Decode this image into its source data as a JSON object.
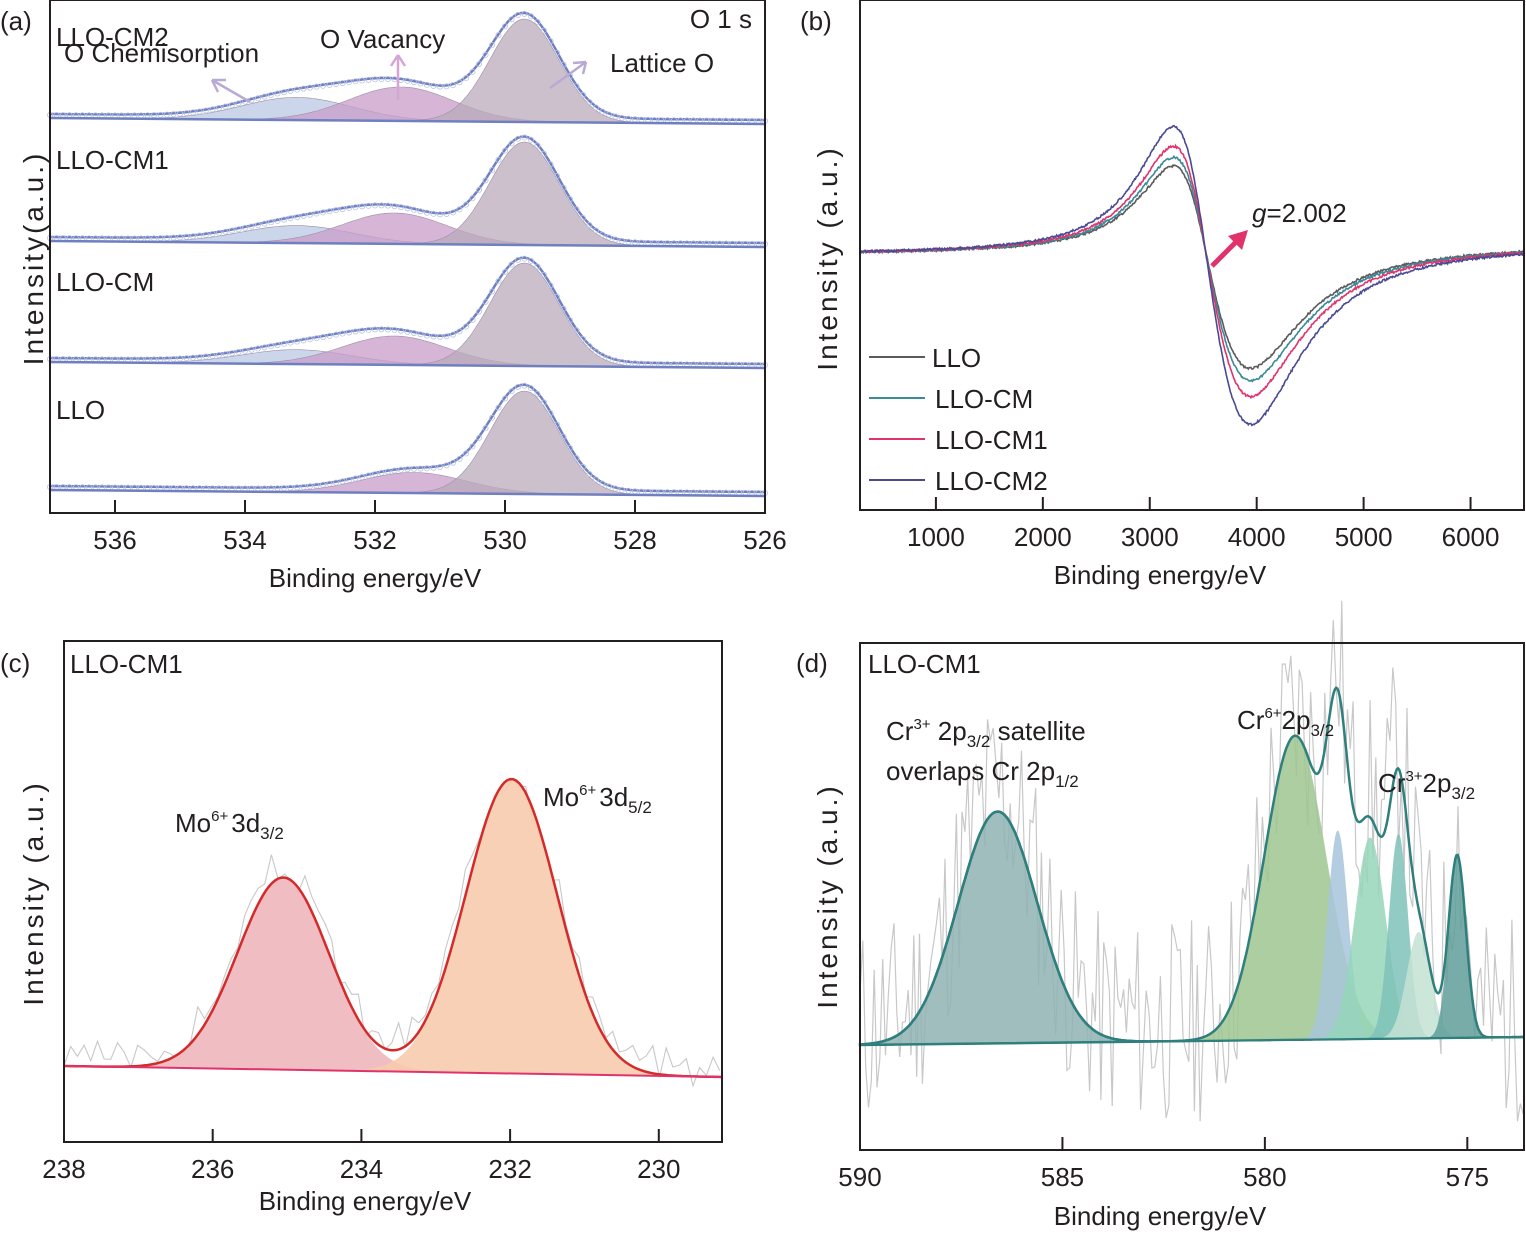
{
  "figure": {
    "panels": [
      "(a)",
      "(b)",
      "(c)",
      "(d)"
    ]
  },
  "chart_data": [
    {
      "id": "a",
      "type": "area",
      "panel_label": "(a)",
      "title": "O 1 s",
      "xlabel": "Binding energy/eV",
      "ylabel": "Intensity(a.u.)",
      "xlim": [
        537,
        526
      ],
      "x_ticks": [
        536,
        534,
        532,
        530,
        528,
        526
      ],
      "x_tick_labels": [
        "536",
        "534",
        "532",
        "530",
        "528",
        "526"
      ],
      "annotations": [
        "O Chemisorption",
        "O Vacancy",
        "Lattice O"
      ],
      "components": [
        {
          "name": "O Chemisorption",
          "center": 533.2,
          "color": "#b9c8e3"
        },
        {
          "name": "O Vacancy",
          "center": 531.6,
          "color": "#c99cc8"
        },
        {
          "name": "Lattice O",
          "center": 529.7,
          "color": "#b9abbb"
        }
      ],
      "fit_color": "#6f7fbf",
      "series": [
        {
          "name": "LLO-CM2",
          "chemisorption_height": 0.22,
          "vacancy_height": 0.33,
          "lattice_height": 1.0,
          "vacancy_center": 531.6
        },
        {
          "name": "LLO-CM1",
          "chemisorption_height": 0.17,
          "vacancy_height": 0.3,
          "lattice_height": 1.0,
          "vacancy_center": 531.7
        },
        {
          "name": "LLO-CM",
          "chemisorption_height": 0.14,
          "vacancy_height": 0.28,
          "lattice_height": 1.0,
          "vacancy_center": 531.7
        },
        {
          "name": "LLO",
          "chemisorption_height": 0.0,
          "vacancy_height": 0.2,
          "lattice_height": 1.0,
          "vacancy_center": 531.4
        }
      ]
    },
    {
      "id": "b",
      "type": "line",
      "panel_label": "(b)",
      "xlabel": "Binding energy/eV",
      "ylabel": "Intensity (a.u.)",
      "xlim": [
        290,
        6500
      ],
      "x_ticks": [
        1000,
        2000,
        3000,
        4000,
        5000,
        6000
      ],
      "x_tick_labels": [
        "1000",
        "2000",
        "3000",
        "4000",
        "5000",
        "6000"
      ],
      "annotation": {
        "italic": "g",
        "text": "=2.002",
        "arrow_color": "#e0336b"
      },
      "legend_position": "bottom-left",
      "center_field": 3520,
      "peak_max_at": 3240,
      "peak_min_at": 3800,
      "series": [
        {
          "name": "LLO",
          "color": "#5b5b5b",
          "amplitude": 0.68
        },
        {
          "name": "LLO-CM",
          "color": "#3a8a9a",
          "amplitude": 0.75
        },
        {
          "name": "LLO-CM1",
          "color": "#e0336b",
          "amplitude": 0.84
        },
        {
          "name": "LLO-CM2",
          "color": "#4a4a93",
          "amplitude": 1.0
        }
      ]
    },
    {
      "id": "c",
      "type": "area",
      "panel_label": "(c)",
      "sample": "LLO-CM1",
      "xlabel": "Binding energy/eV",
      "ylabel": "Intensity (a.u.)",
      "xlim": [
        238,
        229.15
      ],
      "x_ticks": [
        238,
        236,
        234,
        232,
        230
      ],
      "x_tick_labels": [
        "238",
        "236",
        "234",
        "232",
        "230"
      ],
      "envelope_color": "#d42a2a",
      "background_color": "#e0336b",
      "raw_color": "#c8c8c8",
      "peaks": [
        {
          "name": "Mo6+ 3d3/2",
          "label_main": "Mo",
          "label_sup": "6+",
          "label_core": "3d",
          "label_sub": "3/2",
          "center": 235.05,
          "height": 0.62,
          "fwhm": 1.45,
          "color": "#eeb6bd"
        },
        {
          "name": "Mo6+ 3d5/2",
          "label_main": "Mo",
          "label_sup": "6+",
          "label_core": "3d",
          "label_sub": "5/2",
          "center": 231.98,
          "height": 0.95,
          "fwhm": 1.45,
          "color": "#f7cbad"
        }
      ]
    },
    {
      "id": "d",
      "type": "area",
      "panel_label": "(d)",
      "sample": "LLO-CM1",
      "xlabel": "Binding energy/eV",
      "ylabel": "Intensity (a.u.)",
      "xlim": [
        590,
        573.6
      ],
      "x_ticks": [
        590,
        585,
        580,
        575
      ],
      "x_tick_labels": [
        "590",
        "585",
        "580",
        "575"
      ],
      "envelope_color": "#2e7f7d",
      "raw_color": "#c8c8c8",
      "annotations": [
        {
          "main": "Cr",
          "sup": "3+",
          "mid": " 2p",
          "sub": "3/2",
          "tail": " satellite"
        },
        {
          "main": "overlaps Cr 2p",
          "sub": "1/2"
        },
        {
          "main": "Cr",
          "sup": "6+",
          "mid": "2p",
          "sub": "3/2"
        },
        {
          "main": "Cr",
          "sup": "3+",
          "mid": "2p",
          "sub": "3/2"
        }
      ],
      "peaks": [
        {
          "name": "Cr3+ 2p3/2 satellite",
          "center": 586.6,
          "height": 0.61,
          "fwhm": 2.3,
          "color": "#8fb3b3"
        },
        {
          "name": "Cr6+ 2p3/2",
          "center": 579.25,
          "height": 0.8,
          "fwhm": 1.8,
          "color": "#9dc68f"
        },
        {
          "name": "component-3",
          "center": 578.2,
          "height": 0.55,
          "fwhm": 0.6,
          "color": "#a8c4dc"
        },
        {
          "name": "component-4",
          "center": 577.4,
          "height": 0.53,
          "fwhm": 0.9,
          "color": "#95d6b8"
        },
        {
          "name": "Cr3+ 2p3/2",
          "center": 576.7,
          "height": 0.54,
          "fwhm": 0.55,
          "color": "#7fc2b8"
        },
        {
          "name": "component-6",
          "center": 576.2,
          "height": 0.28,
          "fwhm": 0.7,
          "color": "#c4e2d4"
        },
        {
          "name": "component-7",
          "center": 575.25,
          "height": 0.48,
          "fwhm": 0.5,
          "color": "#5f9e9a"
        }
      ]
    }
  ]
}
